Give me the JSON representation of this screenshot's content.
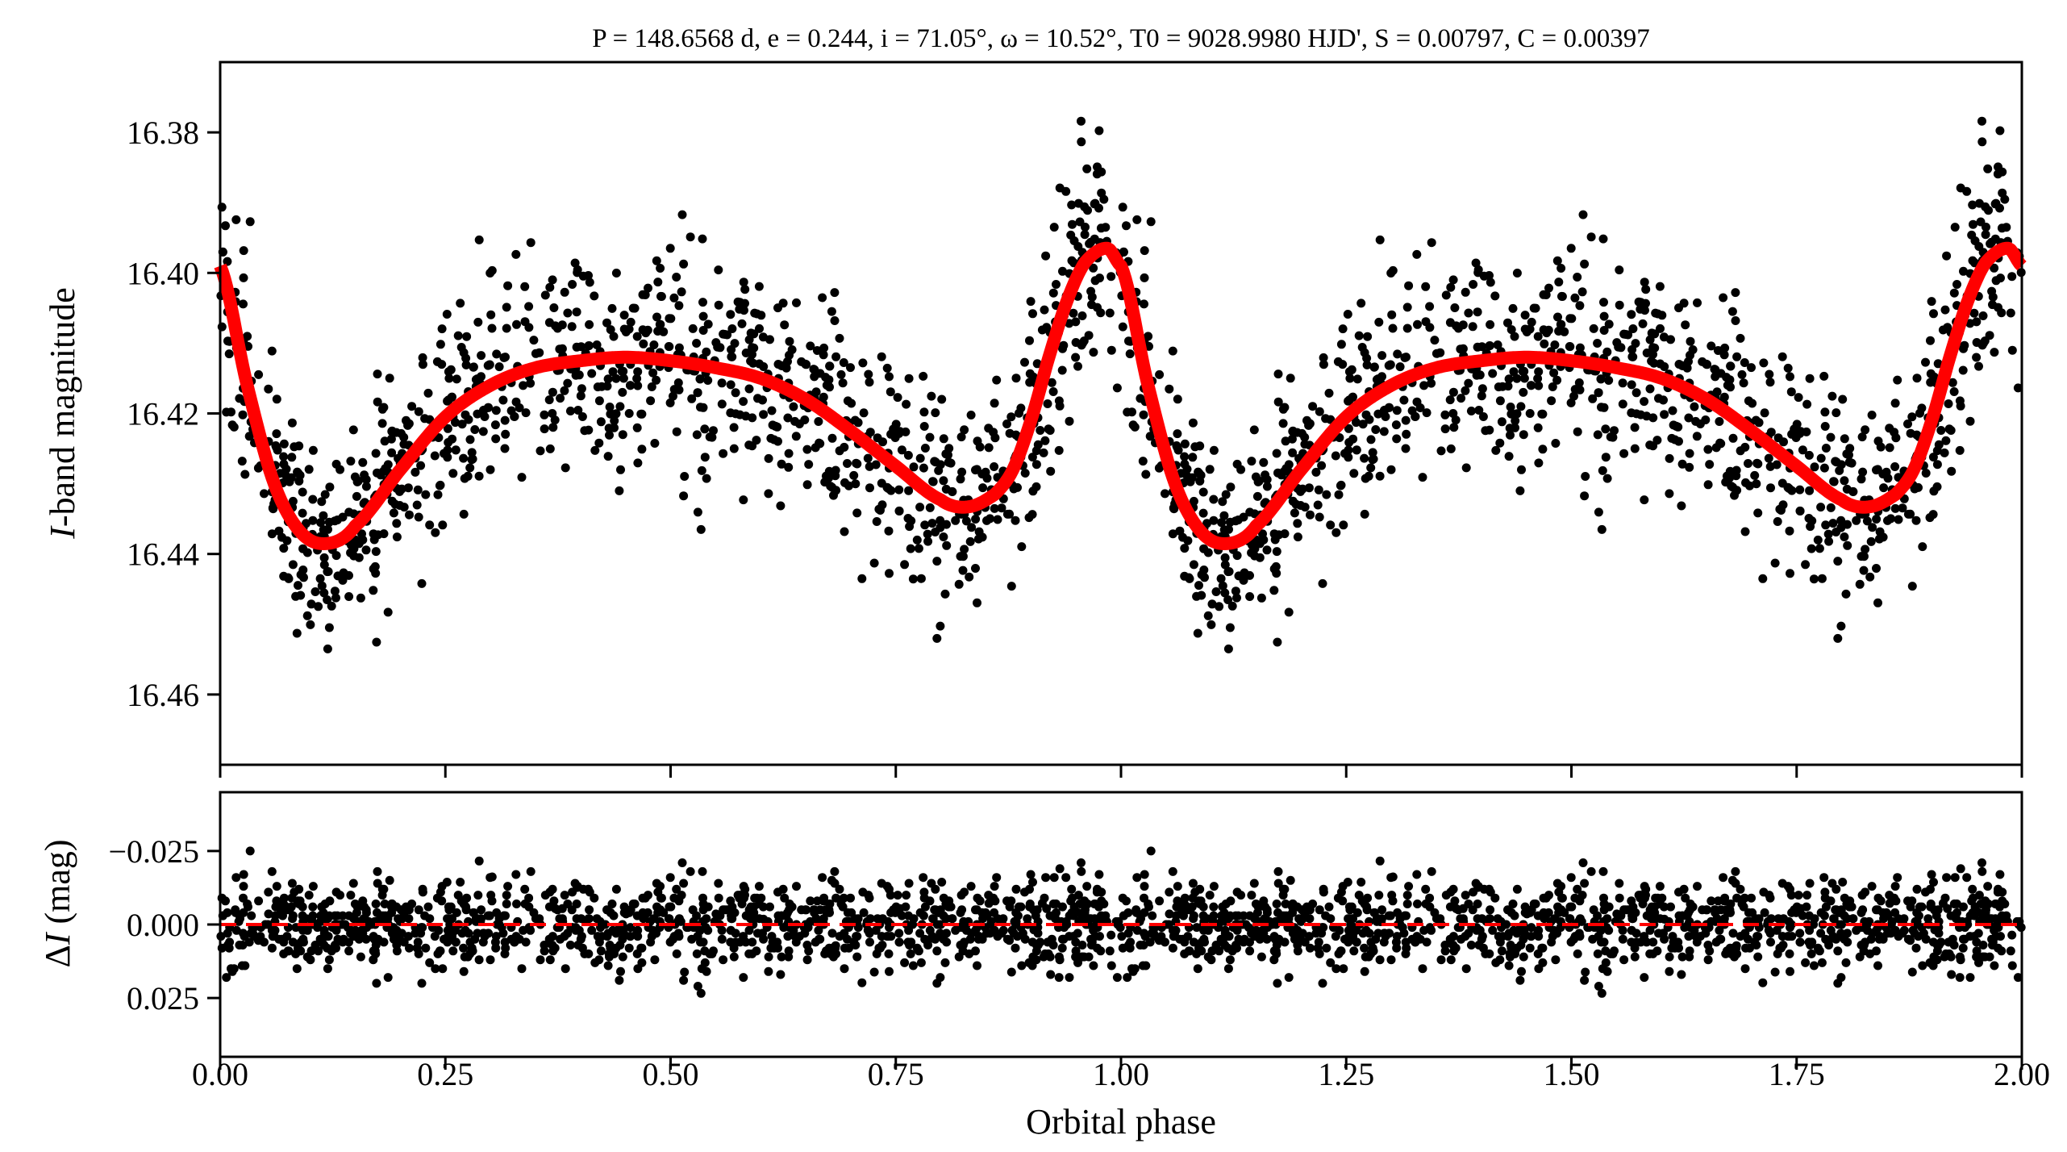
{
  "chart_data": [
    {
      "type": "scatter",
      "panel": "top",
      "title": "P = 148.6568 d, e = 0.244, i = 71.05°, ω = 10.52°, T0 = 9028.9980 HJD', S = 0.00797, C = 0.00397",
      "title_parts": [
        {
          "t": "P",
          "italic": true
        },
        {
          "t": " = 148.6568 d, "
        },
        {
          "t": "e",
          "italic": true
        },
        {
          "t": " = 0.244, "
        },
        {
          "t": "i",
          "italic": true
        },
        {
          "t": " = 71.05°, "
        },
        {
          "t": "ω",
          "italic": true
        },
        {
          "t": " = 10.52°, "
        },
        {
          "t": "T",
          "italic": true
        },
        {
          "t": "0",
          "sub": true
        },
        {
          "t": " = 9028.9980 HJD', "
        },
        {
          "t": "S",
          "italic": true
        },
        {
          "t": " = 0.00797, "
        },
        {
          "t": "C",
          "italic": true
        },
        {
          "t": " = 0.00397"
        }
      ],
      "ylabel_italic": "I",
      "ylabel_rest": "-band magnitude",
      "xlim": [
        0,
        2
      ],
      "ylim": [
        16.47,
        16.37
      ],
      "y_inverted": true,
      "yticks": [
        16.38,
        16.4,
        16.42,
        16.44,
        16.46
      ],
      "ytick_labels": [
        "16.38",
        "16.40",
        "16.42",
        "16.44",
        "16.46"
      ],
      "xticks": [
        0,
        0.25,
        0.5,
        0.75,
        1.0,
        1.25,
        1.5,
        1.75,
        2.0
      ],
      "model_curve": {
        "color": "#ff0000",
        "phase": [
          0.0,
          0.03,
          0.06,
          0.09,
          0.12,
          0.15,
          0.2,
          0.25,
          0.3,
          0.35,
          0.4,
          0.45,
          0.5,
          0.55,
          0.6,
          0.65,
          0.7,
          0.75,
          0.8,
          0.83,
          0.86,
          0.88,
          0.9,
          0.92,
          0.94,
          0.96,
          0.985,
          1.0
        ],
        "magnitude": [
          16.399,
          16.416,
          16.43,
          16.437,
          16.4385,
          16.436,
          16.428,
          16.4205,
          16.416,
          16.4135,
          16.4125,
          16.412,
          16.4125,
          16.4135,
          16.415,
          16.418,
          16.4225,
          16.4275,
          16.4323,
          16.4333,
          16.4315,
          16.428,
          16.421,
          16.412,
          16.404,
          16.3985,
          16.3965,
          16.399
        ]
      },
      "points_color": "#000000",
      "phase_repeated": true
    },
    {
      "type": "scatter",
      "panel": "bottom",
      "xlabel": "Orbital phase",
      "ylabel_prefix": "Δ",
      "ylabel_italic": "I",
      "ylabel_rest": " (mag)",
      "xlim": [
        0,
        2
      ],
      "ylim": [
        0.045,
        -0.045
      ],
      "y_inverted": true,
      "yticks": [
        -0.025,
        0.0,
        0.025
      ],
      "ytick_labels": [
        "−0.025",
        "0.000",
        "0.025"
      ],
      "xticks": [
        0,
        0.25,
        0.5,
        0.75,
        1.0,
        1.25,
        1.5,
        1.75,
        2.0
      ],
      "xtick_labels": [
        "0.00",
        "0.25",
        "0.50",
        "0.75",
        "1.00",
        "1.25",
        "1.50",
        "1.75",
        "2.00"
      ],
      "zero_line": {
        "value": 0.0,
        "color": "#ff0000",
        "style": "dashed"
      },
      "points_color": "#000000"
    }
  ]
}
